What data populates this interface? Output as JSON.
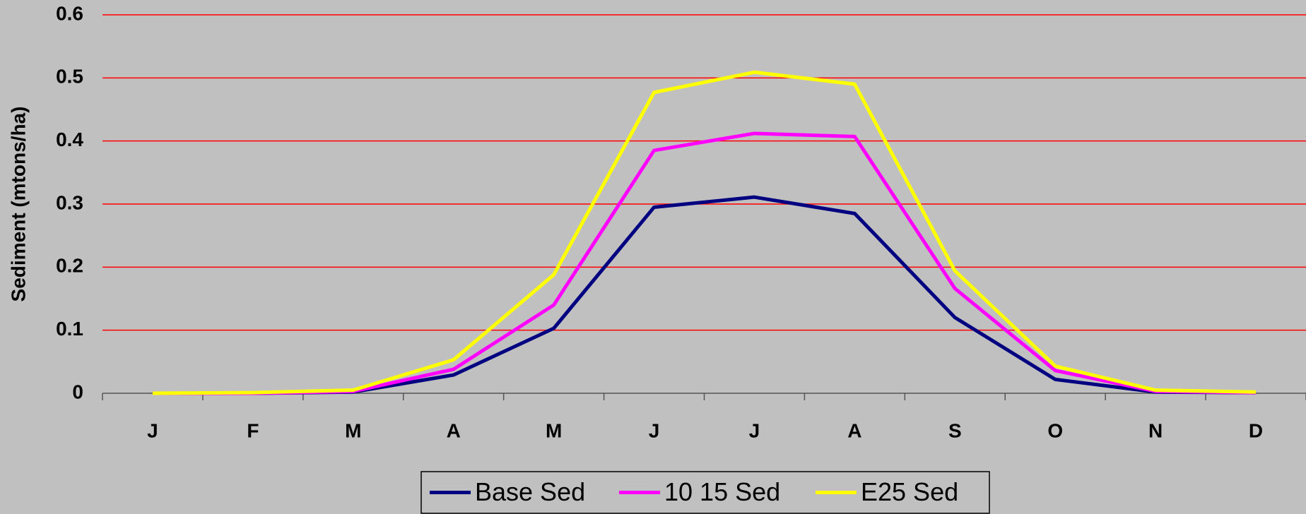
{
  "chart_data": {
    "type": "line",
    "y_label": "Sediment (mtons/ha)",
    "categories": [
      "J",
      "F",
      "M",
      "A",
      "M",
      "J",
      "J",
      "A",
      "S",
      "O",
      "N",
      "D"
    ],
    "series": [
      {
        "name": "Base Sed",
        "color": "#000080",
        "values": [
          0,
          0,
          0.002,
          0.029,
          0.103,
          0.295,
          0.311,
          0.285,
          0.12,
          0.022,
          0.002,
          0.001
        ]
      },
      {
        "name": "10 15 Sed",
        "color": "#ff00ff",
        "values": [
          0,
          0,
          0.003,
          0.038,
          0.14,
          0.385,
          0.412,
          0.407,
          0.166,
          0.036,
          0.003,
          0.001
        ]
      },
      {
        "name": "E25 Sed",
        "color": "#ffff00",
        "values": [
          0,
          0.001,
          0.005,
          0.053,
          0.188,
          0.477,
          0.509,
          0.49,
          0.194,
          0.043,
          0.005,
          0.002
        ]
      }
    ],
    "ylim": [
      0,
      0.6
    ],
    "yticks": [
      0,
      0.1,
      0.2,
      0.3,
      0.4,
      0.5,
      0.6
    ],
    "grid": true,
    "grid_color": "#ff0000",
    "legend": "bottom"
  }
}
